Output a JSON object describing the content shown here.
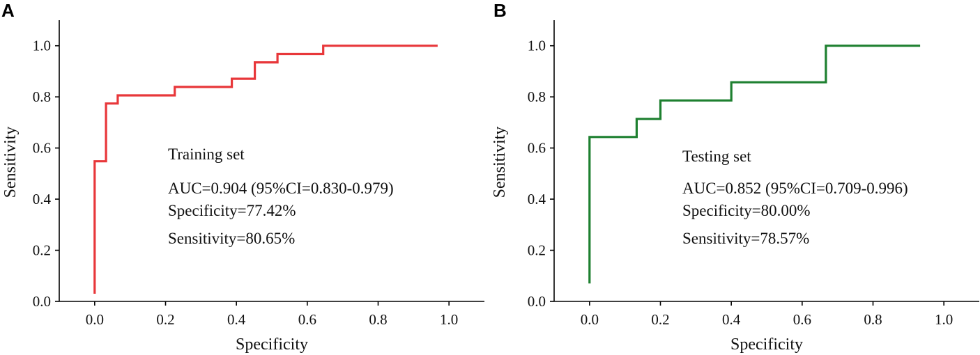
{
  "chart_data": [
    {
      "type": "line",
      "panel_label": "A",
      "title": "Training set",
      "xlabel": "Specificity",
      "ylabel": "Sensitivity",
      "xlim": [
        -0.1,
        1.1
      ],
      "ylim": [
        0.0,
        1.1
      ],
      "xticks": [
        0.0,
        0.2,
        0.4,
        0.6,
        0.8,
        1.0
      ],
      "xtick_labels": [
        "0.0",
        "0.2",
        "0.4",
        "0.6",
        "0.8",
        "1.0"
      ],
      "yticks": [
        0.0,
        0.2,
        0.4,
        0.6,
        0.8,
        1.0
      ],
      "ytick_labels": [
        "0.0",
        "0.2",
        "0.4",
        "0.6",
        "0.8",
        "1.0"
      ],
      "color": "#e8373a",
      "series": [
        {
          "name": "Training set",
          "x": [
            0.0,
            0.0,
            0.0,
            0.032,
            0.032,
            0.065,
            0.065,
            0.226,
            0.226,
            0.387,
            0.387,
            0.452,
            0.452,
            0.516,
            0.516,
            0.645,
            0.645,
            0.968
          ],
          "y": [
            0.03,
            0.12,
            0.548,
            0.548,
            0.774,
            0.774,
            0.806,
            0.806,
            0.839,
            0.839,
            0.871,
            0.871,
            0.935,
            0.935,
            0.968,
            0.968,
            1.0,
            1.0
          ]
        }
      ],
      "annotations": [
        "Training set",
        "AUC=0.904 (95%CI=0.830-0.979)",
        "Specificity=77.42%",
        "Sensitivity=80.65%"
      ]
    },
    {
      "type": "line",
      "panel_label": "B",
      "title": "Testing set",
      "xlabel": "Specificity",
      "ylabel": "Sensitivity",
      "xlim": [
        -0.1,
        1.1
      ],
      "ylim": [
        0.0,
        1.1
      ],
      "xticks": [
        0.0,
        0.2,
        0.4,
        0.6,
        0.8,
        1.0
      ],
      "xtick_labels": [
        "0.0",
        "0.2",
        "0.4",
        "0.6",
        "0.8",
        "1.0"
      ],
      "yticks": [
        0.0,
        0.2,
        0.4,
        0.6,
        0.8,
        1.0
      ],
      "ytick_labels": [
        "0.0",
        "0.2",
        "0.4",
        "0.6",
        "0.8",
        "1.0"
      ],
      "color": "#1e8030",
      "series": [
        {
          "name": "Testing set",
          "x": [
            0.0,
            0.0,
            0.0,
            0.133,
            0.133,
            0.2,
            0.2,
            0.4,
            0.4,
            0.667,
            0.667,
            0.933
          ],
          "y": [
            0.07,
            0.12,
            0.643,
            0.643,
            0.714,
            0.714,
            0.786,
            0.786,
            0.857,
            0.857,
            1.0,
            1.0
          ]
        }
      ],
      "annotations": [
        "Testing set",
        "AUC=0.852 (95%CI=0.709-0.996)",
        "Specificity=80.00%",
        "Sensitivity=78.57%"
      ]
    }
  ]
}
